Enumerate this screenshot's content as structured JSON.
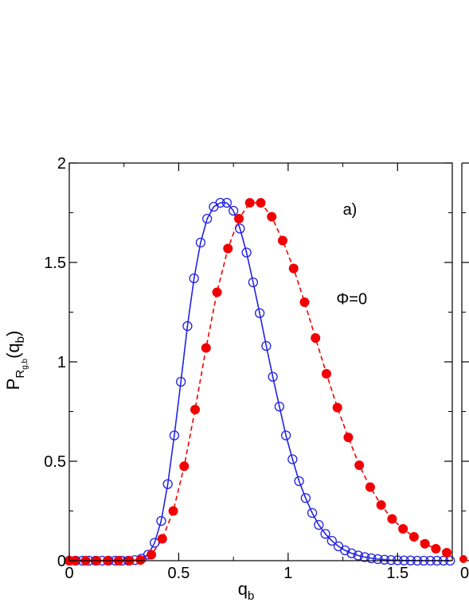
{
  "chart_data": {
    "type": "scatter",
    "xlabel": {
      "main": "q",
      "sub": "b"
    },
    "ylabel": {
      "p": "P",
      "r": "R",
      "rsub": "g,b",
      "arg_open": "(q",
      "arg_sub": "b",
      "arg_close": ")"
    },
    "xlim": [
      0,
      1.75
    ],
    "ylim": [
      0,
      2
    ],
    "xticks": [
      {
        "value": 0,
        "label": "0"
      },
      {
        "value": 0.5,
        "label": "0.5"
      },
      {
        "value": 1,
        "label": "1"
      },
      {
        "value": 1.5,
        "label": "1.5"
      }
    ],
    "yticks": [
      {
        "value": 0,
        "label": "0"
      },
      {
        "value": 0.5,
        "label": "0.5"
      },
      {
        "value": 1,
        "label": "1"
      },
      {
        "value": 1.5,
        "label": "1.5"
      },
      {
        "value": 2,
        "label": "2"
      }
    ],
    "annotations": [
      {
        "text": "a)",
        "x": 1.25,
        "y": 1.74
      },
      {
        "text": "Φ=0",
        "x": 1.22,
        "y": 1.29
      }
    ],
    "next_panel_tick_label": "0",
    "colors": {
      "open_series": "#2323e0",
      "filled_series": "#f00000",
      "axis": "#000000"
    },
    "series": [
      {
        "style": "open-circles-with-solid-line",
        "x": [
          0.0,
          0.03,
          0.06,
          0.09,
          0.12,
          0.15,
          0.18,
          0.21,
          0.24,
          0.27,
          0.3,
          0.33,
          0.36,
          0.39,
          0.42,
          0.45,
          0.48,
          0.51,
          0.54,
          0.57,
          0.6,
          0.63,
          0.66,
          0.69,
          0.72,
          0.75,
          0.78,
          0.81,
          0.84,
          0.87,
          0.9,
          0.93,
          0.96,
          0.99,
          1.02,
          1.05,
          1.08,
          1.11,
          1.14,
          1.17,
          1.2,
          1.23,
          1.26,
          1.29,
          1.32,
          1.35,
          1.38,
          1.41,
          1.44,
          1.47,
          1.5,
          1.53,
          1.56,
          1.59,
          1.62,
          1.65,
          1.68,
          1.71,
          1.74
        ],
        "y": [
          0.0,
          0.0,
          0.0,
          0.0,
          0.0,
          0.0,
          0.0,
          0.0,
          0.0,
          0.0,
          0.003,
          0.01,
          0.03,
          0.09,
          0.2,
          0.385,
          0.63,
          0.9,
          1.18,
          1.42,
          1.6,
          1.72,
          1.78,
          1.8,
          1.8,
          1.76,
          1.67,
          1.55,
          1.4,
          1.245,
          1.08,
          0.925,
          0.775,
          0.63,
          0.51,
          0.4,
          0.315,
          0.24,
          0.18,
          0.135,
          0.1,
          0.072,
          0.052,
          0.037,
          0.026,
          0.018,
          0.012,
          0.008,
          0.005,
          0.003,
          0.002,
          0.001,
          0.001,
          0.0,
          0.0,
          0.0,
          0.0,
          0.0,
          0.0
        ]
      },
      {
        "style": "filled-circles-with-dashed-line",
        "x": [
          0.0,
          0.025,
          0.075,
          0.125,
          0.175,
          0.225,
          0.275,
          0.325,
          0.375,
          0.425,
          0.475,
          0.525,
          0.575,
          0.625,
          0.675,
          0.725,
          0.775,
          0.825,
          0.875,
          0.925,
          0.975,
          1.025,
          1.075,
          1.125,
          1.175,
          1.225,
          1.275,
          1.325,
          1.375,
          1.425,
          1.475,
          1.525,
          1.575,
          1.625,
          1.675,
          1.725
        ],
        "y": [
          0.0,
          0.0,
          0.0,
          0.0,
          0.0,
          0.0,
          0.0,
          0.003,
          0.03,
          0.11,
          0.25,
          0.475,
          0.76,
          1.07,
          1.35,
          1.57,
          1.72,
          1.8,
          1.8,
          1.73,
          1.61,
          1.47,
          1.3,
          1.12,
          0.94,
          0.77,
          0.62,
          0.48,
          0.37,
          0.28,
          0.21,
          0.16,
          0.12,
          0.085,
          0.06,
          0.04
        ]
      }
    ]
  }
}
